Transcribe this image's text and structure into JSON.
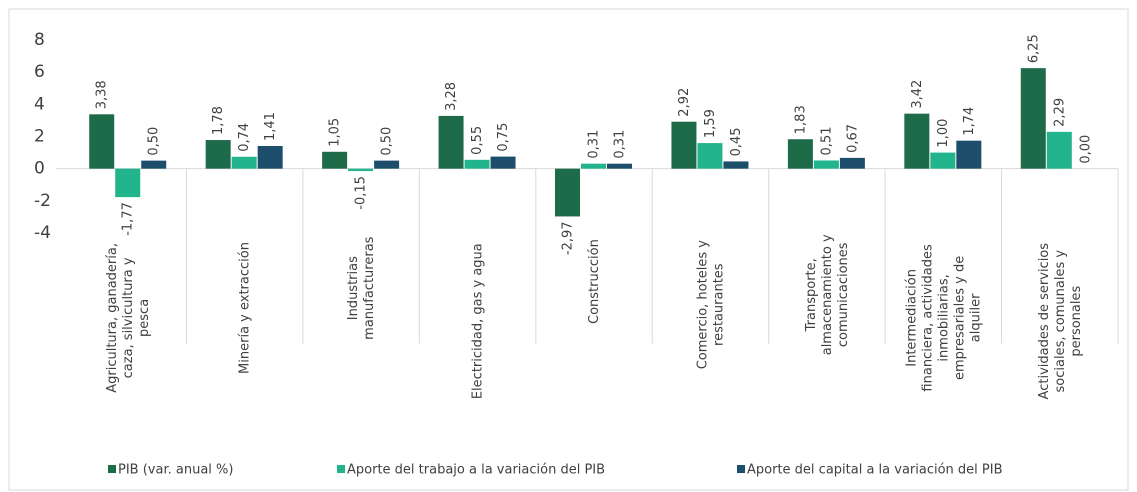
{
  "chart_data": {
    "type": "bar",
    "categories": [
      "Agricultura, ganadería, caza, silvicultura y pesca",
      "Minería y extracción",
      "Industrias manufactureras",
      "Electricidad, gas y agua",
      "Construcción",
      "Comercio, hoteles y restaurantes",
      "Transporte, almacenamiento y comunicaciones",
      "Intermediación financiera, actividades inmobiliarias, empresariales y de alquiler",
      "Actividades de servicios sociales, comunales y personales"
    ],
    "series": [
      {
        "name": "PIB (var. anual %)",
        "color": "#1e6b4a",
        "values": [
          3.38,
          1.78,
          1.05,
          3.28,
          -2.97,
          2.92,
          1.83,
          3.42,
          6.25
        ],
        "value_labels": [
          "3,38",
          "1,78",
          "1,05",
          "3,28",
          "-2,97",
          "2,92",
          "1,83",
          "3,42",
          "6,25"
        ]
      },
      {
        "name": "Aporte del trabajo a la variación del PIB",
        "color": "#22b48c",
        "values": [
          -1.77,
          0.74,
          -0.15,
          0.55,
          0.31,
          1.59,
          0.51,
          1.0,
          2.29
        ],
        "value_labels": [
          "-1,77",
          "0,74",
          "-0,15",
          "0,55",
          "0,31",
          "1,59",
          "0,51",
          "1,00",
          "2,29"
        ]
      },
      {
        "name": "Aporte del capital a la variación del PIB",
        "color": "#1d4e6b",
        "values": [
          0.5,
          1.41,
          0.5,
          0.75,
          0.31,
          0.45,
          0.67,
          1.74,
          0.0
        ],
        "value_labels": [
          "0,50",
          "1,41",
          "0,50",
          "0,75",
          "0,31",
          "0,45",
          "0,67",
          "1,74",
          "0,00"
        ]
      }
    ],
    "ylim": [
      -4,
      8
    ],
    "yticks": [
      -4,
      -2,
      0,
      2,
      4,
      6,
      8
    ],
    "grid": false,
    "legend": "bottom"
  }
}
